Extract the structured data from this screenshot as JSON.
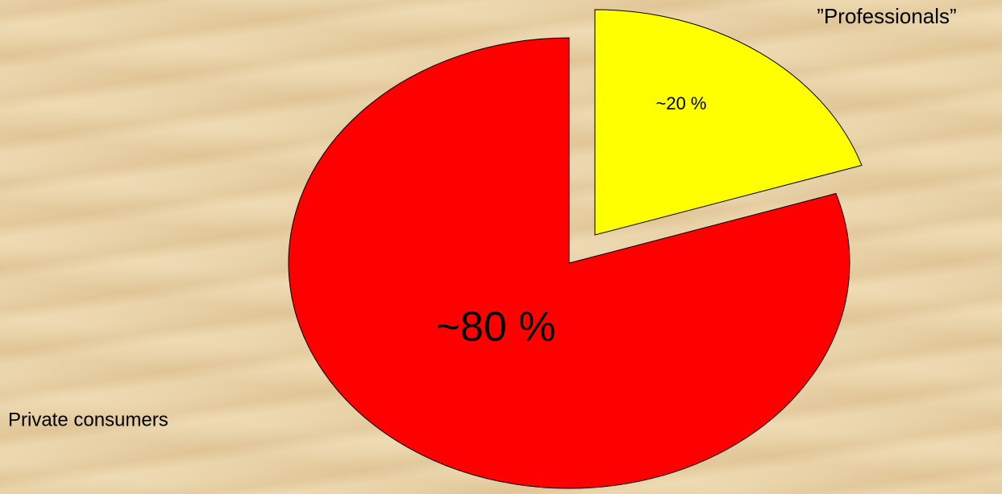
{
  "chart_data": {
    "type": "pie",
    "categories": [
      "Private consumers",
      "”Professionals”"
    ],
    "values": [
      80,
      20
    ],
    "value_labels": [
      "~80 %",
      "~20 %"
    ],
    "colors": [
      "#ff0000",
      "#ffff00"
    ]
  }
}
